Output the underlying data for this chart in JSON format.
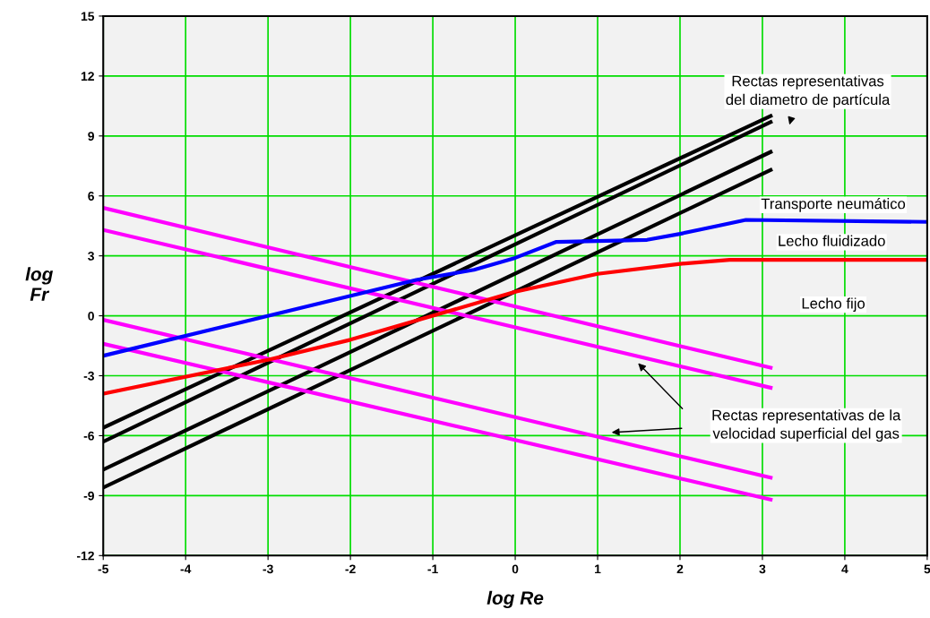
{
  "chart_data": {
    "type": "line",
    "xlabel": "log Re",
    "ylabel": "log\nFr",
    "xlim": [
      -5,
      5
    ],
    "ylim": [
      -12,
      15
    ],
    "xticks": [
      -5,
      -4,
      -3,
      -2,
      -1,
      0,
      1,
      2,
      3,
      4,
      5
    ],
    "yticks": [
      -12,
      -9,
      -6,
      -3,
      0,
      3,
      6,
      9,
      12,
      15
    ],
    "grid": true,
    "legend": false,
    "marker": "none",
    "line_style": "solid",
    "series": [
      {
        "color": "#000000",
        "x": [
          -5,
          3.1
        ],
        "values": [
          -5.6,
          10.0
        ]
      },
      {
        "color": "#000000",
        "x": [
          -5,
          3.1
        ],
        "values": [
          -6.3,
          9.7
        ]
      },
      {
        "color": "#000000",
        "x": [
          -5,
          3.1
        ],
        "values": [
          -7.7,
          8.2
        ]
      },
      {
        "color": "#000000",
        "x": [
          -5,
          3.1
        ],
        "values": [
          -8.6,
          7.3
        ]
      },
      {
        "color": "#ff00ff",
        "x": [
          -5,
          3.1
        ],
        "values": [
          5.4,
          -2.6
        ]
      },
      {
        "color": "#ff00ff",
        "x": [
          -5,
          3.1
        ],
        "values": [
          4.3,
          -3.6
        ]
      },
      {
        "color": "#ff00ff",
        "x": [
          -5,
          3.1
        ],
        "values": [
          -0.2,
          -8.1
        ]
      },
      {
        "color": "#ff00ff",
        "x": [
          -5,
          3.1
        ],
        "values": [
          -1.4,
          -9.2
        ]
      },
      {
        "color": "#0000ff",
        "x": [
          -5,
          -1.2,
          -0.5,
          0,
          0.5,
          1.6,
          2,
          2.8,
          5
        ],
        "values": [
          -2.0,
          1.8,
          2.3,
          2.9,
          3.7,
          3.8,
          4.1,
          4.8,
          4.7
        ]
      },
      {
        "color": "#ff0000",
        "x": [
          -5,
          -3,
          -2,
          -1,
          0,
          1,
          2,
          2.6,
          5
        ],
        "values": [
          -3.9,
          -2.2,
          -1.2,
          0,
          1.2,
          2.1,
          2.6,
          2.8,
          2.8
        ]
      }
    ],
    "annotations": [
      "Rectas representativas\ndel diametro de partícula",
      "Transporte neumático",
      "Lecho fluidizado",
      "Lecho fijo",
      "Rectas representativas de la\nvelocidad superficial del gas"
    ]
  }
}
